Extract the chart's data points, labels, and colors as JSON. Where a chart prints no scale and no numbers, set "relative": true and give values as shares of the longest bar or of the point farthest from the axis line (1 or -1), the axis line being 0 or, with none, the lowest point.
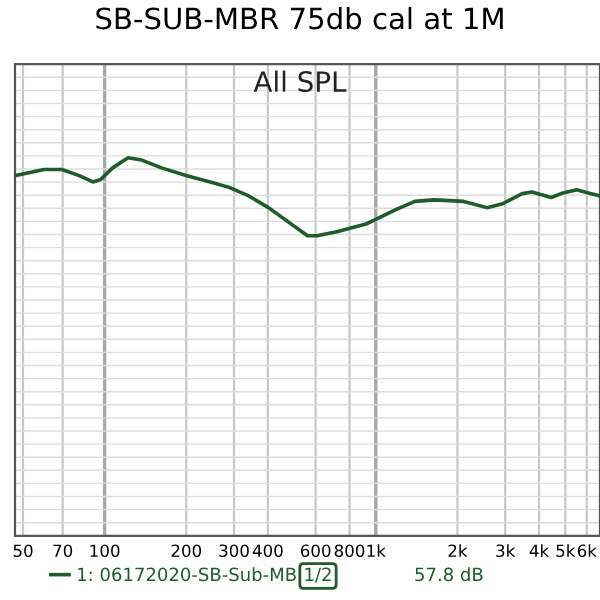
{
  "chart_data": {
    "type": "line",
    "title": "SB-SUB-MBR 75db cal at 1M",
    "relative": true,
    "log": "x",
    "grid": true,
    "legend": "bottom",
    "tick_labels": "x",
    "annotations": [
      "All SPL",
      "1/2",
      "57.8 dB"
    ],
    "xlim": [
      46.7,
      6714
    ],
    "xticks": [
      50,
      70,
      100,
      200,
      300,
      400,
      600,
      800,
      {
        "value": 1000,
        "label": "1k"
      },
      {
        "value": 2000,
        "label": "2k"
      },
      {
        "value": 3000,
        "label": "3k"
      },
      {
        "value": 4000,
        "label": "4k"
      },
      {
        "value": 5000,
        "label": "5k"
      },
      {
        "value": 6000,
        "label": "6k"
      }
    ],
    "series": [
      {
        "name": "1: 06172020-SB-Sub-MB",
        "color": "#1e5c2c",
        "x": [
          46.7,
          59.8,
          69.5,
          80.6,
          90.5,
          96.7,
          107,
          122,
          137,
          162,
          201,
          245,
          288,
          340,
          402,
          474,
          560,
          608,
          718,
          920,
          1000,
          1180,
          1393,
          1644,
          2109,
          2573,
          2936,
          3467,
          3767,
          4440,
          4824,
          5506,
          6180,
          6714
        ],
        "values": [
          0.77,
          0.85,
          0.85,
          0.77,
          0.69,
          0.72,
          0.87,
          1,
          0.97,
          0.87,
          0.77,
          0.69,
          0.62,
          0.51,
          0.36,
          0.18,
          0,
          0,
          0.05,
          0.15,
          0.21,
          0.33,
          0.44,
          0.46,
          0.44,
          0.36,
          0.41,
          0.54,
          0.56,
          0.49,
          0.54,
          0.59,
          0.54,
          0.51
        ]
      }
    ]
  }
}
